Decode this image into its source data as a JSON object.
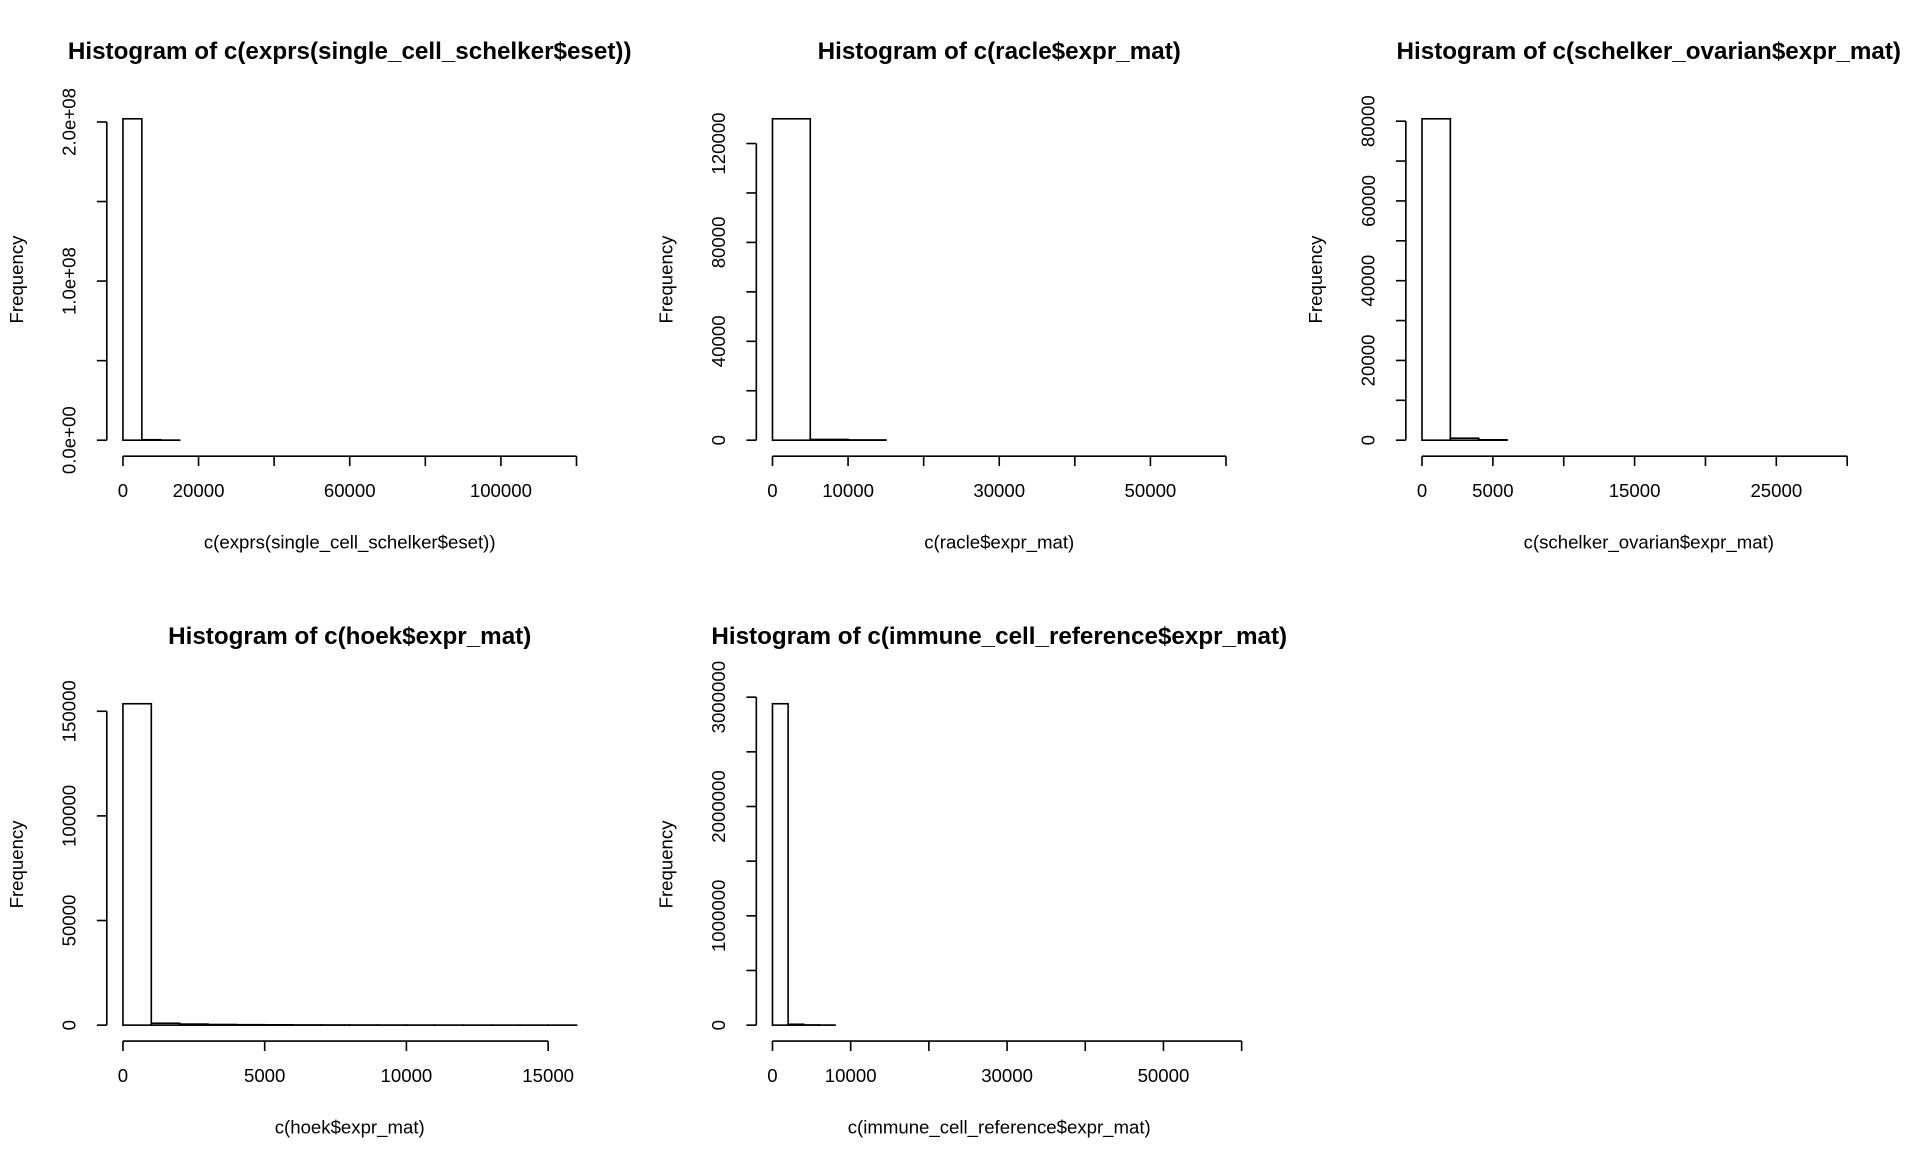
{
  "chart_data": [
    {
      "type": "histogram",
      "title": "Histogram of c(exprs(single_cell_schelker$eset))",
      "xlabel": "c(exprs(single_cell_schelker$eset))",
      "ylabel": "Frequency",
      "bins": [
        0,
        5000,
        10000,
        15000,
        20000,
        25000,
        30000,
        35000,
        40000,
        45000,
        50000,
        55000,
        60000,
        65000,
        70000,
        75000,
        80000,
        85000,
        90000,
        95000,
        100000,
        105000,
        110000,
        115000,
        120000
      ],
      "counts": [
        202000000,
        300000,
        50000,
        0,
        0,
        0,
        0,
        0,
        0,
        0,
        0,
        0,
        0,
        0,
        0,
        0,
        0,
        0,
        0,
        0,
        0,
        0,
        0,
        0
      ],
      "xlim": [
        -4800,
        124800
      ],
      "ylim": [
        -8080000,
        210080000
      ],
      "xticks": [
        0,
        20000,
        {
          "value": 40000,
          "label": null
        },
        60000,
        {
          "value": 80000,
          "label": null
        },
        100000,
        {
          "value": 120000,
          "label": null
        }
      ],
      "yticks": [
        {
          "value": 0,
          "label": "0.0e+00"
        },
        {
          "value": 50000000,
          "label": null
        },
        {
          "value": 100000000,
          "label": "1.0e+08"
        },
        {
          "value": 150000000,
          "label": null
        },
        {
          "value": 200000000,
          "label": "2.0e+08"
        }
      ]
    },
    {
      "type": "histogram",
      "title": "Histogram of c(racle$expr_mat)",
      "xlabel": "c(racle$expr_mat)",
      "ylabel": "Frequency",
      "bins": [
        0,
        5000,
        10000,
        15000,
        20000,
        25000,
        30000,
        35000,
        40000,
        45000,
        50000,
        55000,
        60000
      ],
      "counts": [
        130000,
        300,
        100,
        0,
        0,
        0,
        0,
        0,
        0,
        0,
        0,
        0
      ],
      "xlim": [
        -2400,
        62400
      ],
      "ylim": [
        -5200,
        135200
      ],
      "xticks": [
        0,
        10000,
        {
          "value": 20000,
          "label": null
        },
        30000,
        {
          "value": 40000,
          "label": null
        },
        50000,
        {
          "value": 60000,
          "label": null
        }
      ],
      "yticks": [
        0,
        {
          "value": 20000,
          "label": null
        },
        40000,
        {
          "value": 60000,
          "label": null
        },
        80000,
        {
          "value": 100000,
          "label": null
        },
        120000
      ]
    },
    {
      "type": "histogram",
      "title": "Histogram of c(schelker_ovarian$expr_mat)",
      "xlabel": "c(schelker_ovarian$expr_mat)",
      "ylabel": "Frequency",
      "bins": [
        0,
        2000,
        4000,
        6000,
        8000,
        10000,
        12000,
        14000,
        16000,
        18000,
        20000,
        22000,
        24000,
        26000,
        28000,
        30000,
        32000
      ],
      "counts": [
        80600,
        500,
        100,
        0,
        0,
        0,
        0,
        0,
        0,
        0,
        0,
        0,
        0,
        0,
        0,
        0
      ],
      "xlim": [
        -1280,
        33280
      ],
      "ylim": [
        -3224,
        83824
      ],
      "xticks": [
        0,
        5000,
        {
          "value": 10000,
          "label": null
        },
        15000,
        {
          "value": 20000,
          "label": null
        },
        25000,
        {
          "value": 30000,
          "label": null
        }
      ],
      "yticks": [
        0,
        {
          "value": 10000,
          "label": null
        },
        20000,
        {
          "value": 30000,
          "label": null
        },
        40000,
        {
          "value": 50000,
          "label": null
        },
        60000,
        {
          "value": 70000,
          "label": null
        },
        80000
      ]
    },
    {
      "type": "histogram",
      "title": "Histogram of c(hoek$expr_mat)",
      "xlabel": "c(hoek$expr_mat)",
      "ylabel": "Frequency",
      "bins": [
        0,
        1000,
        2000,
        3000,
        4000,
        5000,
        6000,
        7000,
        8000,
        9000,
        10000,
        11000,
        12000,
        13000,
        14000,
        15000,
        16000
      ],
      "counts": [
        153600,
        900,
        500,
        300,
        200,
        150,
        100,
        80,
        60,
        40,
        30,
        20,
        10,
        10,
        5,
        5
      ],
      "xlim": [
        -640,
        16640
      ],
      "ylim": [
        -6144,
        159744
      ],
      "xticks": [
        0,
        5000,
        10000,
        15000
      ],
      "yticks": [
        0,
        50000,
        100000,
        150000
      ]
    },
    {
      "type": "histogram",
      "title": "Histogram of c(immune_cell_reference$expr_mat)",
      "xlabel": "c(immune_cell_reference$expr_mat)",
      "ylabel": "Frequency",
      "bins": [
        0,
        2000,
        4000,
        6000,
        8000,
        10000,
        12000,
        14000,
        16000,
        18000,
        20000,
        22000,
        24000,
        26000,
        28000,
        30000,
        32000,
        34000,
        36000,
        38000,
        40000,
        42000,
        44000,
        46000,
        48000,
        50000,
        52000,
        54000,
        56000,
        58000
      ],
      "counts": [
        2940000,
        8000,
        2000,
        800,
        0,
        0,
        0,
        0,
        0,
        0,
        0,
        0,
        0,
        0,
        0,
        0,
        0,
        0,
        0,
        0,
        0,
        0,
        0,
        0,
        0,
        0,
        0,
        0,
        0
      ],
      "xlim": [
        -2320,
        60320
      ],
      "ylim": [
        -117600,
        3057600
      ],
      "xticks": [
        0,
        10000,
        {
          "value": 20000,
          "label": null
        },
        30000,
        {
          "value": 40000,
          "label": null
        },
        50000,
        {
          "value": 60000,
          "label": null
        }
      ],
      "yticks": [
        0,
        {
          "value": 500000,
          "label": null
        },
        1000000,
        {
          "value": 1500000,
          "label": null
        },
        2000000,
        {
          "value": 2500000,
          "label": null
        },
        3000000
      ]
    }
  ]
}
